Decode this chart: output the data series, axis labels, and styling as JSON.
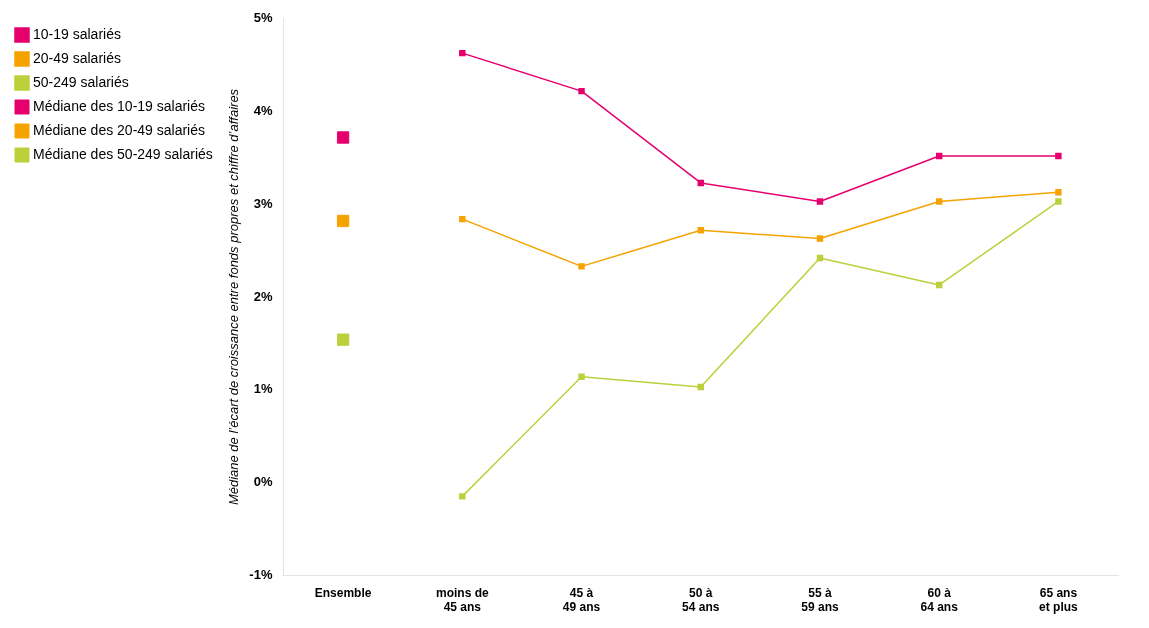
{
  "chart_data": {
    "type": "line",
    "ylabel": "Médiane de l’écart de croissance entre fonds propres et chiffre d’affaires",
    "categories": [
      "Ensemble",
      "moins de 45 ans",
      "45 à 49 ans",
      "50 à 54 ans",
      "55 à 59 ans",
      "60 à 64 ans",
      "65 ans et plus"
    ],
    "ylim": [
      -1,
      5
    ],
    "yticks": [
      {
        "value": -1,
        "label": "-1%"
      },
      {
        "value": 0,
        "label": "0%"
      },
      {
        "value": 1,
        "label": "1%"
      },
      {
        "value": 2,
        "label": "2%"
      },
      {
        "value": 3,
        "label": "3%"
      },
      {
        "value": 4,
        "label": "4%"
      },
      {
        "value": 5,
        "label": "5%"
      }
    ],
    "grid": false,
    "legend": "top left",
    "marker": "square",
    "line_style": "solid",
    "series": [
      {
        "name": "10-19 salariés",
        "color": "#e5006d",
        "values": [
          null,
          4.63,
          4.22,
          3.23,
          3.03,
          3.52,
          3.52
        ]
      },
      {
        "name": "20-49 salariés",
        "color": "#f5a300",
        "values": [
          null,
          2.84,
          2.33,
          2.72,
          2.63,
          3.03,
          3.13
        ]
      },
      {
        "name": "50-249 salariés",
        "color": "#bcd03c",
        "values": [
          null,
          -0.15,
          1.14,
          1.03,
          2.42,
          2.13,
          3.03
        ]
      },
      {
        "name": "Médiane des 10-19 salariés",
        "type": "scatter",
        "color": "#e5006d",
        "values": [
          3.72,
          null,
          null,
          null,
          null,
          null,
          null
        ]
      },
      {
        "name": "Médiane des 20-49 salariés",
        "type": "scatter",
        "color": "#f5a300",
        "values": [
          2.82,
          null,
          null,
          null,
          null,
          null,
          null
        ]
      },
      {
        "name": "Médiane des 50-249 salariés",
        "type": "scatter",
        "color": "#bcd03c",
        "values": [
          1.54,
          null,
          null,
          null,
          null,
          null,
          null
        ]
      }
    ]
  }
}
